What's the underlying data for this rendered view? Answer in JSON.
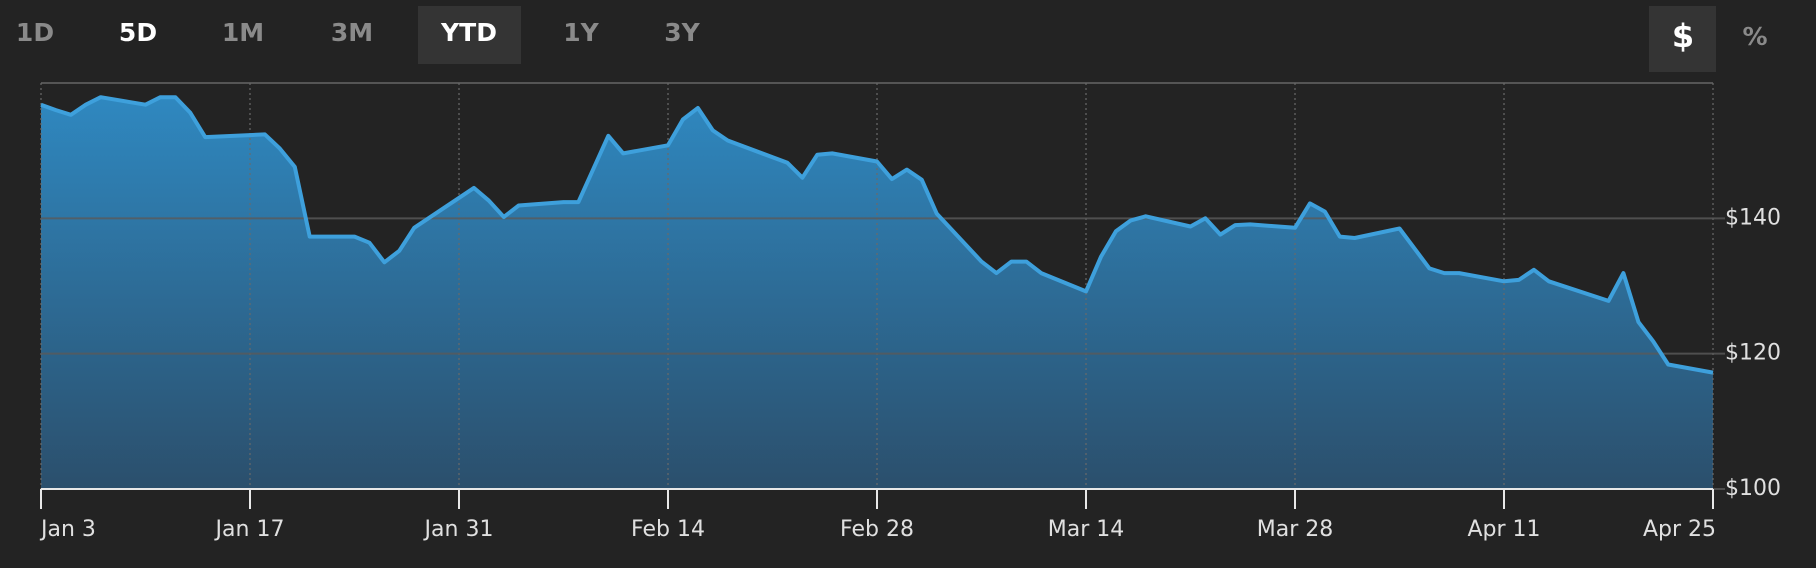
{
  "controls": {
    "ranges": [
      "1D",
      "5D",
      "1M",
      "3M",
      "YTD",
      "1Y",
      "3Y"
    ],
    "units": [
      "$",
      "%"
    ]
  },
  "chart_data": {
    "type": "area",
    "color": "#3ea0dc",
    "x": [
      "Jan 3",
      "Jan 4",
      "Jan 5",
      "Jan 6",
      "Jan 7",
      "Jan 10",
      "Jan 11",
      "Jan 12",
      "Jan 13",
      "Jan 14",
      "Jan 18",
      "Jan 19",
      "Jan 20",
      "Jan 21",
      "Jan 24",
      "Jan 25",
      "Jan 26",
      "Jan 27",
      "Jan 28",
      "Feb 1",
      "Feb 2",
      "Feb 3",
      "Feb 4",
      "Feb 7",
      "Feb 8",
      "Feb 10",
      "Feb 11",
      "Feb 14",
      "Feb 15",
      "Feb 16",
      "Feb 17",
      "Feb 18",
      "Feb 22",
      "Feb 23",
      "Feb 24",
      "Feb 25",
      "Feb 28",
      "Mar 1",
      "Mar 2",
      "Mar 3",
      "Mar 4",
      "Mar 7",
      "Mar 8",
      "Mar 9",
      "Mar 10",
      "Mar 11",
      "Mar 14",
      "Mar 15",
      "Mar 16",
      "Mar 17",
      "Mar 18",
      "Mar 21",
      "Mar 22",
      "Mar 23",
      "Mar 24",
      "Mar 25",
      "Mar 28",
      "Mar 29",
      "Mar 30",
      "Mar 31",
      "Apr 1",
      "Apr 4",
      "Apr 6",
      "Apr 7",
      "Apr 8",
      "Apr 11",
      "Apr 12",
      "Apr 13",
      "Apr 14",
      "Apr 18",
      "Apr 19",
      "Apr 20",
      "Apr 21",
      "Apr 22",
      "Apr 25"
    ],
    "values": [
      156.8,
      156.0,
      155.3,
      156.8,
      157.9,
      156.8,
      157.9,
      157.9,
      155.6,
      152.0,
      152.4,
      150.3,
      147.6,
      137.3,
      137.3,
      136.4,
      133.5,
      135.2,
      138.6,
      144.5,
      142.6,
      140.2,
      141.9,
      142.4,
      142.4,
      152.2,
      149.6,
      150.8,
      154.6,
      156.3,
      153.0,
      151.5,
      148.2,
      146.0,
      149.4,
      149.6,
      148.4,
      145.8,
      147.2,
      145.7,
      140.7,
      133.6,
      131.9,
      133.6,
      133.6,
      131.9,
      129.2,
      134.3,
      138.1,
      139.7,
      140.3,
      138.8,
      140.0,
      137.6,
      139.0,
      139.1,
      138.6,
      142.2,
      141.0,
      137.3,
      137.1,
      138.5,
      132.6,
      131.9,
      131.9,
      130.7,
      130.9,
      132.4,
      130.7,
      127.8,
      131.9,
      124.7,
      121.8,
      118.4,
      117.2
    ],
    "xlim": [
      "Jan 3",
      "Apr 25"
    ],
    "xticks": [
      "Jan 3",
      "Jan 17",
      "Jan 31",
      "Feb 14",
      "Feb 28",
      "Mar 14",
      "Mar 28",
      "Apr 11",
      "Apr 25"
    ],
    "ylim": [
      100,
      160
    ],
    "yticks": [
      {
        "value": 100,
        "label": "$100"
      },
      {
        "value": 120,
        "label": "$120"
      },
      {
        "value": 140,
        "label": "$140"
      }
    ],
    "grid": true
  }
}
